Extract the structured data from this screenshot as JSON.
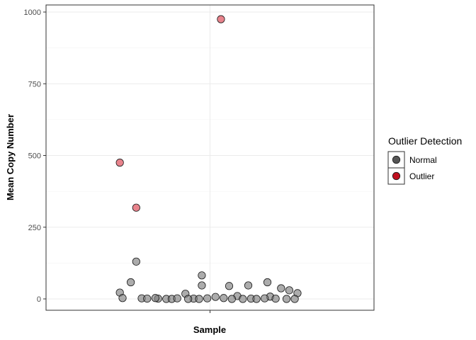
{
  "chart_data": {
    "type": "scatter",
    "title": "",
    "xlabel": "Sample",
    "ylabel": "Mean Copy Number",
    "ylim": [
      -40,
      1030
    ],
    "yticks": [
      0,
      250,
      500,
      750,
      1000
    ],
    "grid": true,
    "legend": {
      "title": "Outlier Detection",
      "position": "right",
      "entries": [
        {
          "label": "Normal",
          "color": "#555555"
        },
        {
          "label": "Outlier",
          "color": "#c0101f"
        }
      ]
    },
    "colors": {
      "Normal": "#7f7f7f",
      "Outlier": "#d9303f"
    },
    "series": [
      {
        "name": "Outlier",
        "points": [
          {
            "x": 0.04,
            "y": 975
          },
          {
            "x": -0.33,
            "y": 475
          },
          {
            "x": -0.27,
            "y": 318
          }
        ]
      },
      {
        "name": "Normal",
        "points": [
          {
            "x": -0.27,
            "y": 130
          },
          {
            "x": -0.03,
            "y": 82
          },
          {
            "x": -0.29,
            "y": 58
          },
          {
            "x": 0.21,
            "y": 58
          },
          {
            "x": -0.03,
            "y": 47
          },
          {
            "x": 0.07,
            "y": 45
          },
          {
            "x": 0.14,
            "y": 47
          },
          {
            "x": 0.26,
            "y": 37
          },
          {
            "x": 0.29,
            "y": 30
          },
          {
            "x": -0.33,
            "y": 22
          },
          {
            "x": 0.32,
            "y": 20
          },
          {
            "x": -0.09,
            "y": 18
          },
          {
            "x": 0.1,
            "y": 10
          },
          {
            "x": 0.22,
            "y": 8
          },
          {
            "x": 0.02,
            "y": 7
          },
          {
            "x": -0.32,
            "y": 3
          },
          {
            "x": -0.25,
            "y": 2
          },
          {
            "x": -0.23,
            "y": 1
          },
          {
            "x": -0.19,
            "y": 1
          },
          {
            "x": -0.16,
            "y": 0
          },
          {
            "x": -0.14,
            "y": 0
          },
          {
            "x": -0.12,
            "y": 2
          },
          {
            "x": -0.06,
            "y": 1
          },
          {
            "x": -0.04,
            "y": 0
          },
          {
            "x": -0.01,
            "y": 2
          },
          {
            "x": 0.05,
            "y": 3
          },
          {
            "x": 0.08,
            "y": 0
          },
          {
            "x": 0.12,
            "y": 0
          },
          {
            "x": 0.15,
            "y": 1
          },
          {
            "x": 0.17,
            "y": 0
          },
          {
            "x": 0.2,
            "y": 2
          },
          {
            "x": 0.24,
            "y": 1
          },
          {
            "x": 0.28,
            "y": 0
          },
          {
            "x": 0.31,
            "y": 0
          },
          {
            "x": -0.2,
            "y": 3
          },
          {
            "x": -0.08,
            "y": 0
          }
        ]
      }
    ]
  }
}
